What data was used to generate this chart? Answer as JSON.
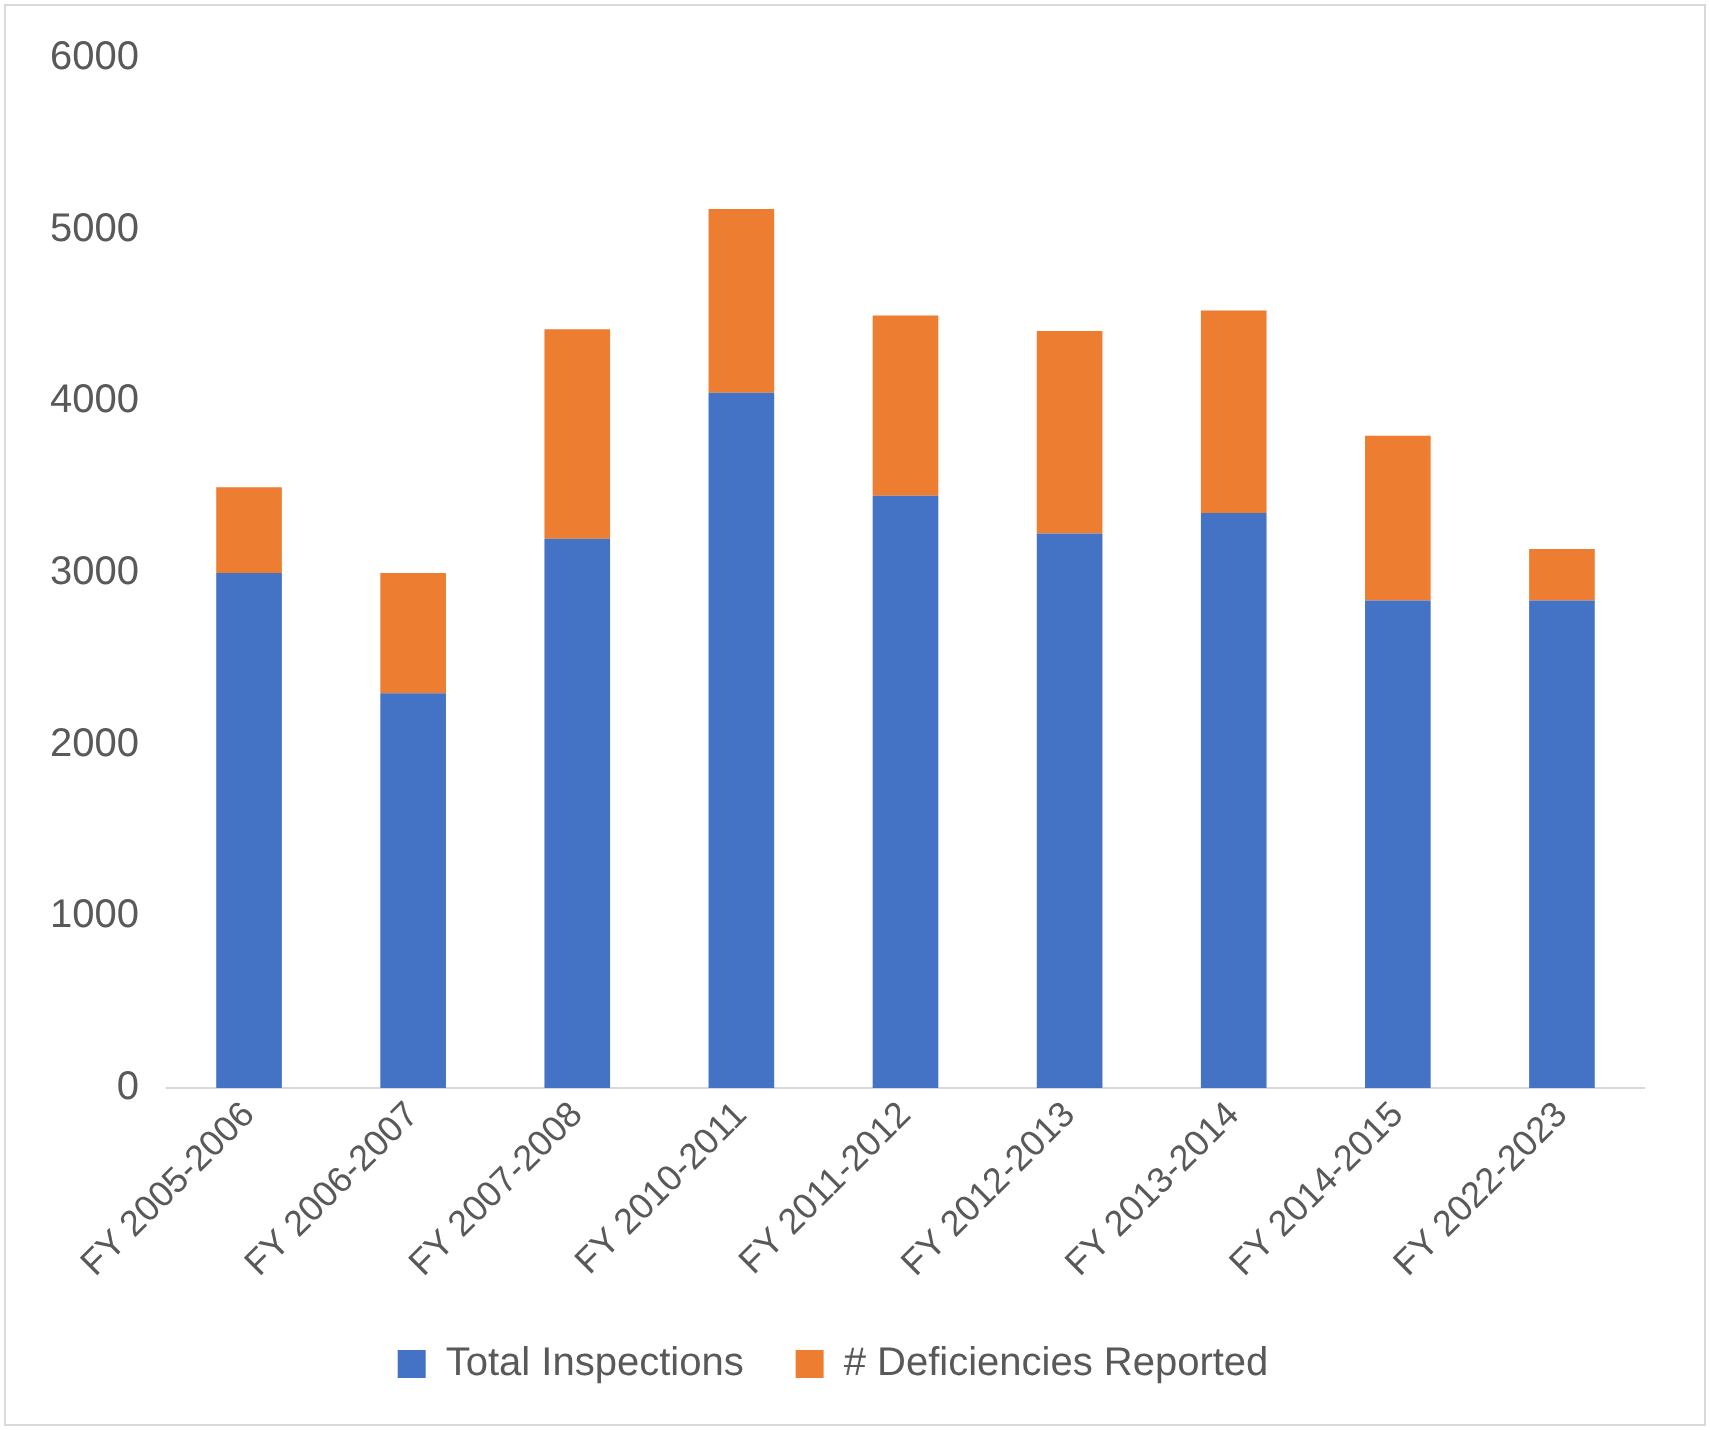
{
  "chart_data": {
    "type": "bar",
    "stacked": true,
    "categories": [
      "FY 2005-2006",
      "FY 2006-2007",
      "FY 2007-2008",
      "FY 2010-2011",
      "FY 2011-2012",
      "FY 2012-2013",
      "FY 2013-2014",
      "FY 2014-2015",
      "FY 2022-2023"
    ],
    "series": [
      {
        "name": "Total Inspections",
        "color": "#4472c4",
        "values": [
          3000,
          2300,
          3200,
          4050,
          3450,
          3230,
          3350,
          2840,
          2840
        ]
      },
      {
        "name": "# Deficiencies Reported",
        "color": "#ed7d31",
        "values": [
          500,
          700,
          1220,
          1070,
          1050,
          1180,
          1180,
          960,
          300
        ]
      }
    ],
    "ylim": [
      0,
      6000
    ],
    "yticks": [
      0,
      1000,
      2000,
      3000,
      4000,
      5000,
      6000
    ],
    "grid": false,
    "legend": "bottom"
  }
}
